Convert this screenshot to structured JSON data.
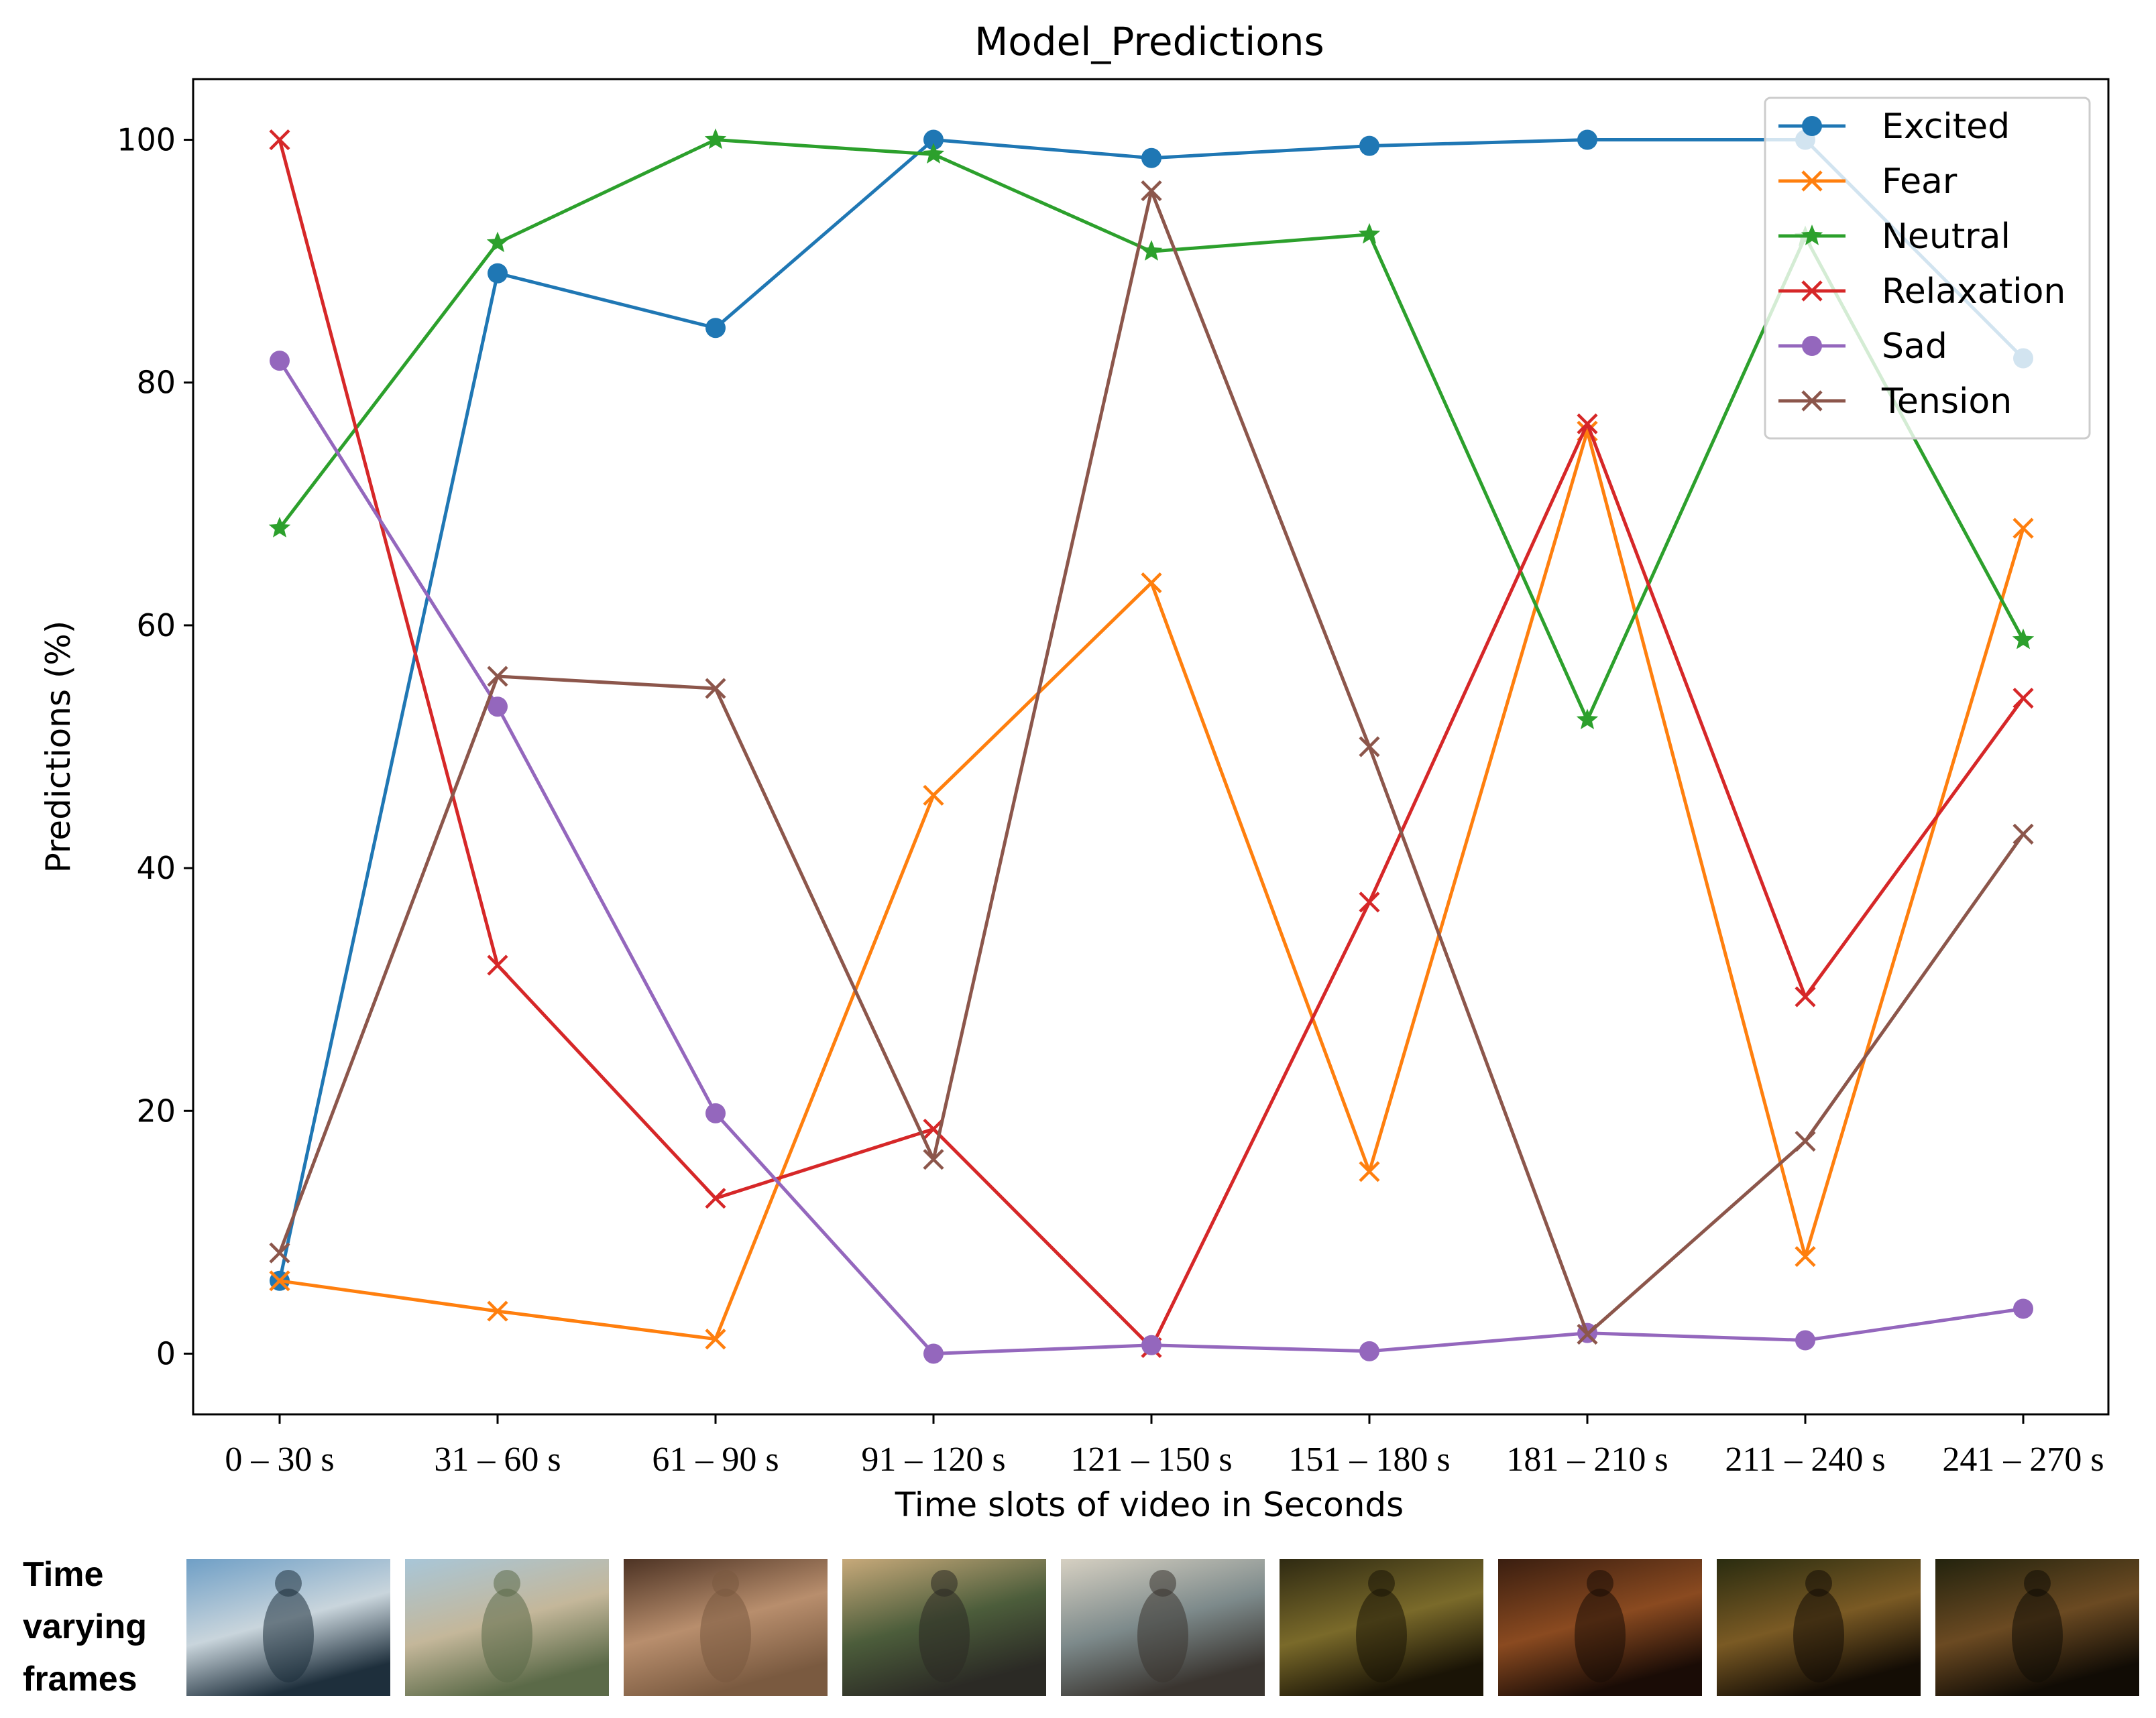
{
  "chart_data": {
    "type": "line",
    "title": "Model_Predictions",
    "xlabel": "Time slots of video in Seconds",
    "ylabel": "Predictions (%)",
    "categories": [
      "0 – 30 s",
      "31 – 60 s",
      "61 – 90 s",
      "91 – 120 s",
      "121 – 150 s",
      "151 – 180 s",
      "181 – 210 s",
      "211 – 240 s",
      "241 – 270 s"
    ],
    "ylim": [
      -5,
      105
    ],
    "yticks": [
      0,
      20,
      40,
      60,
      80,
      100
    ],
    "grid": false,
    "legend_position": "top-right",
    "series": [
      {
        "name": "Excited",
        "color": "#1f77b4",
        "marker": "circle",
        "values": [
          6,
          89,
          84.5,
          100,
          98.5,
          99.5,
          100,
          100,
          82
        ]
      },
      {
        "name": "Fear",
        "color": "#ff7f0e",
        "marker": "x",
        "values": [
          6,
          3.5,
          1.2,
          46,
          63.5,
          15,
          76,
          8,
          68
        ]
      },
      {
        "name": "Neutral",
        "color": "#2ca02c",
        "marker": "star",
        "values": [
          68,
          91.5,
          100,
          98.8,
          90.8,
          92.2,
          52.2,
          92,
          58.8
        ]
      },
      {
        "name": "Relaxation",
        "color": "#d62728",
        "marker": "x",
        "values": [
          100,
          32,
          12.8,
          18.5,
          0.5,
          37.2,
          76.6,
          29.4,
          54
        ]
      },
      {
        "name": "Sad",
        "color": "#9467bd",
        "marker": "circle",
        "values": [
          81.8,
          53.3,
          19.8,
          0,
          0.7,
          0.2,
          1.7,
          1.1,
          3.7
        ]
      },
      {
        "name": "Tension",
        "color": "#8c564b",
        "marker": "x",
        "values": [
          8.3,
          55.8,
          54.8,
          16,
          95.8,
          50,
          1.6,
          17.5,
          42.8
        ]
      }
    ]
  },
  "frames": {
    "label_lines": [
      "Time",
      "varying",
      "frames"
    ],
    "thumbnails": [
      {
        "colors": [
          "#6f9fc6",
          "#c9d5dc",
          "#1e2f3c"
        ]
      },
      {
        "colors": [
          "#a8c6d8",
          "#c4b79a",
          "#5b6a48"
        ]
      },
      {
        "colors": [
          "#4d3324",
          "#b88e6d",
          "#7a5a40"
        ]
      },
      {
        "colors": [
          "#c7a97a",
          "#4c5d3b",
          "#2b2a25"
        ]
      },
      {
        "colors": [
          "#d6d0c2",
          "#7d8a8b",
          "#3a3530"
        ]
      },
      {
        "colors": [
          "#2f2a12",
          "#7a6a2a",
          "#1a1406"
        ]
      },
      {
        "colors": [
          "#3a1e10",
          "#8a4a20",
          "#1a0c06"
        ]
      },
      {
        "colors": [
          "#2a2c10",
          "#7a5a24",
          "#140d05"
        ]
      },
      {
        "colors": [
          "#23230e",
          "#6b4a22",
          "#110c05"
        ]
      }
    ]
  }
}
